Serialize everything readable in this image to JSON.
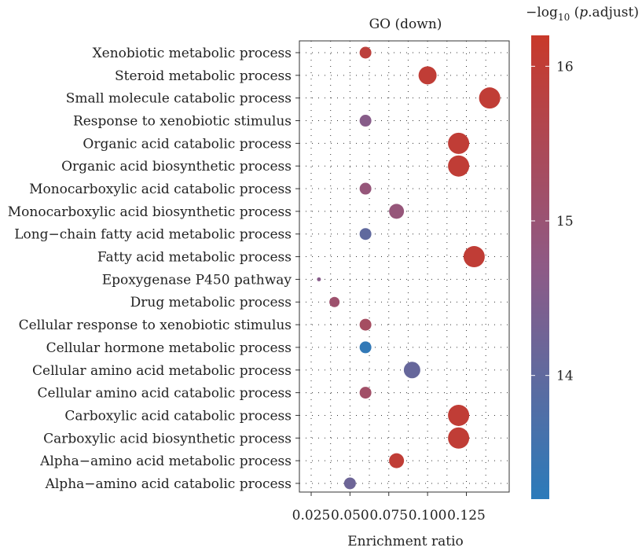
{
  "chart_data": {
    "type": "scatter",
    "title": "GO (down)",
    "xlabel": "Enrichment ratio",
    "ylabel": "",
    "xlim": [
      0.025,
      0.145
    ],
    "xticks": [
      0.025,
      0.05,
      0.075,
      0.1,
      0.125
    ],
    "xtick_labels": [
      "0.025",
      "0.050",
      "0.075",
      "0.100",
      "0.125"
    ],
    "categories": [
      "Xenobiotic metabolic process",
      "Steroid metabolic process",
      "Small molecule catabolic process",
      "Response to xenobiotic stimulus",
      "Organic acid catabolic process",
      "Organic acid biosynthetic process",
      "Monocarboxylic acid catabolic process",
      "Monocarboxylic acid biosynthetic process",
      "Long−chain fatty acid metabolic process",
      "Fatty acid metabolic process",
      "Epoxygenase P450 pathway",
      "Drug metabolic process",
      "Cellular response to xenobiotic stimulus",
      "Cellular hormone metabolic process",
      "Cellular amino acid metabolic process",
      "Cellular amino acid catabolic process",
      "Carboxylic acid catabolic process",
      "Carboxylic acid biosynthetic process",
      "Alpha−amino acid metabolic process",
      "Alpha−amino acid catabolic process"
    ],
    "x": [
      0.06,
      0.1,
      0.14,
      0.06,
      0.12,
      0.12,
      0.06,
      0.08,
      0.06,
      0.13,
      0.03,
      0.04,
      0.06,
      0.06,
      0.09,
      0.06,
      0.12,
      0.12,
      0.08,
      0.05
    ],
    "color_value": [
      15.9,
      16.0,
      16.0,
      14.6,
      16.0,
      16.0,
      14.9,
      14.9,
      14.0,
      16.0,
      14.6,
      15.1,
      15.3,
      13.3,
      14.1,
      15.2,
      16.0,
      16.0,
      16.0,
      14.2
    ],
    "size_value": [
      2,
      4,
      5,
      2,
      5,
      5,
      2,
      3,
      2,
      5,
      1,
      1.5,
      2,
      2,
      3.5,
      2,
      5,
      5,
      3,
      2
    ],
    "colorbar": {
      "title_prefix": "−log",
      "title_sub": "10",
      "title_paren_open": " (",
      "title_italic": "p",
      "title_suffix": ".adjust)",
      "range": [
        13.2,
        16.2
      ],
      "ticks": [
        14,
        15,
        16
      ],
      "tick_labels": [
        "14",
        "15",
        "16"
      ],
      "low_color": "#2b7bba",
      "mid_color": "#8e5a86",
      "high_color": "#c8392a"
    },
    "grid": true
  }
}
